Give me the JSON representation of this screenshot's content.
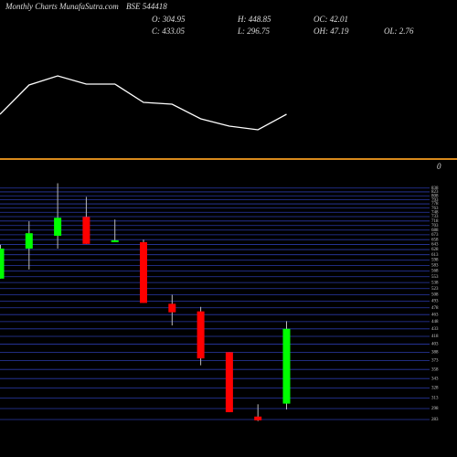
{
  "chart_data": [
    {
      "type": "line",
      "header": {
        "left": "Monthly Charts",
        "site": "MunafaSutra.com",
        "symbol": "BSE 544418",
        "stats_row1": [
          "O: 304.95",
          "H: 448.85",
          "OC: 42.01"
        ],
        "stats_row2": [
          "C: 433.05",
          "L: 296.75",
          "OH: 47.19",
          "OL: 2.76"
        ]
      },
      "values": [
        75,
        107,
        117,
        108,
        108,
        88,
        86,
        70,
        62,
        58,
        75
      ],
      "ylim": [
        40,
        140
      ],
      "color": "#ffffff",
      "divider_color": "#d98a1c",
      "axis_note": "0"
    },
    {
      "type": "candlestick",
      "open": [
        548,
        631,
        670,
        732,
        650,
        650,
        487,
        470,
        388,
        287,
        304.95
      ],
      "high": [
        642,
        717,
        857,
        804,
        723,
        658,
        508,
        480,
        388,
        304,
        448.85
      ],
      "low": [
        548,
        572,
        631,
        645,
        650,
        489,
        440,
        365,
        293,
        281,
        296.75
      ],
      "close": [
        631,
        678,
        729,
        645,
        656,
        489,
        468,
        377,
        293,
        282,
        433.05
      ],
      "up_color": "#00ff00",
      "down_color": "#ff0000",
      "grid_color": "#2a3aa8",
      "log_scale": true,
      "ylim": [
        270,
        870
      ],
      "yticks": [
        283,
        298,
        313,
        328,
        343,
        358,
        373,
        388,
        403,
        418,
        433,
        448,
        463,
        478,
        493,
        508,
        523,
        538,
        553,
        568,
        583,
        598,
        613,
        628,
        643,
        658,
        673,
        688,
        703,
        718,
        733,
        748,
        763,
        778,
        793,
        808,
        823,
        838
      ],
      "grid": true
    }
  ]
}
